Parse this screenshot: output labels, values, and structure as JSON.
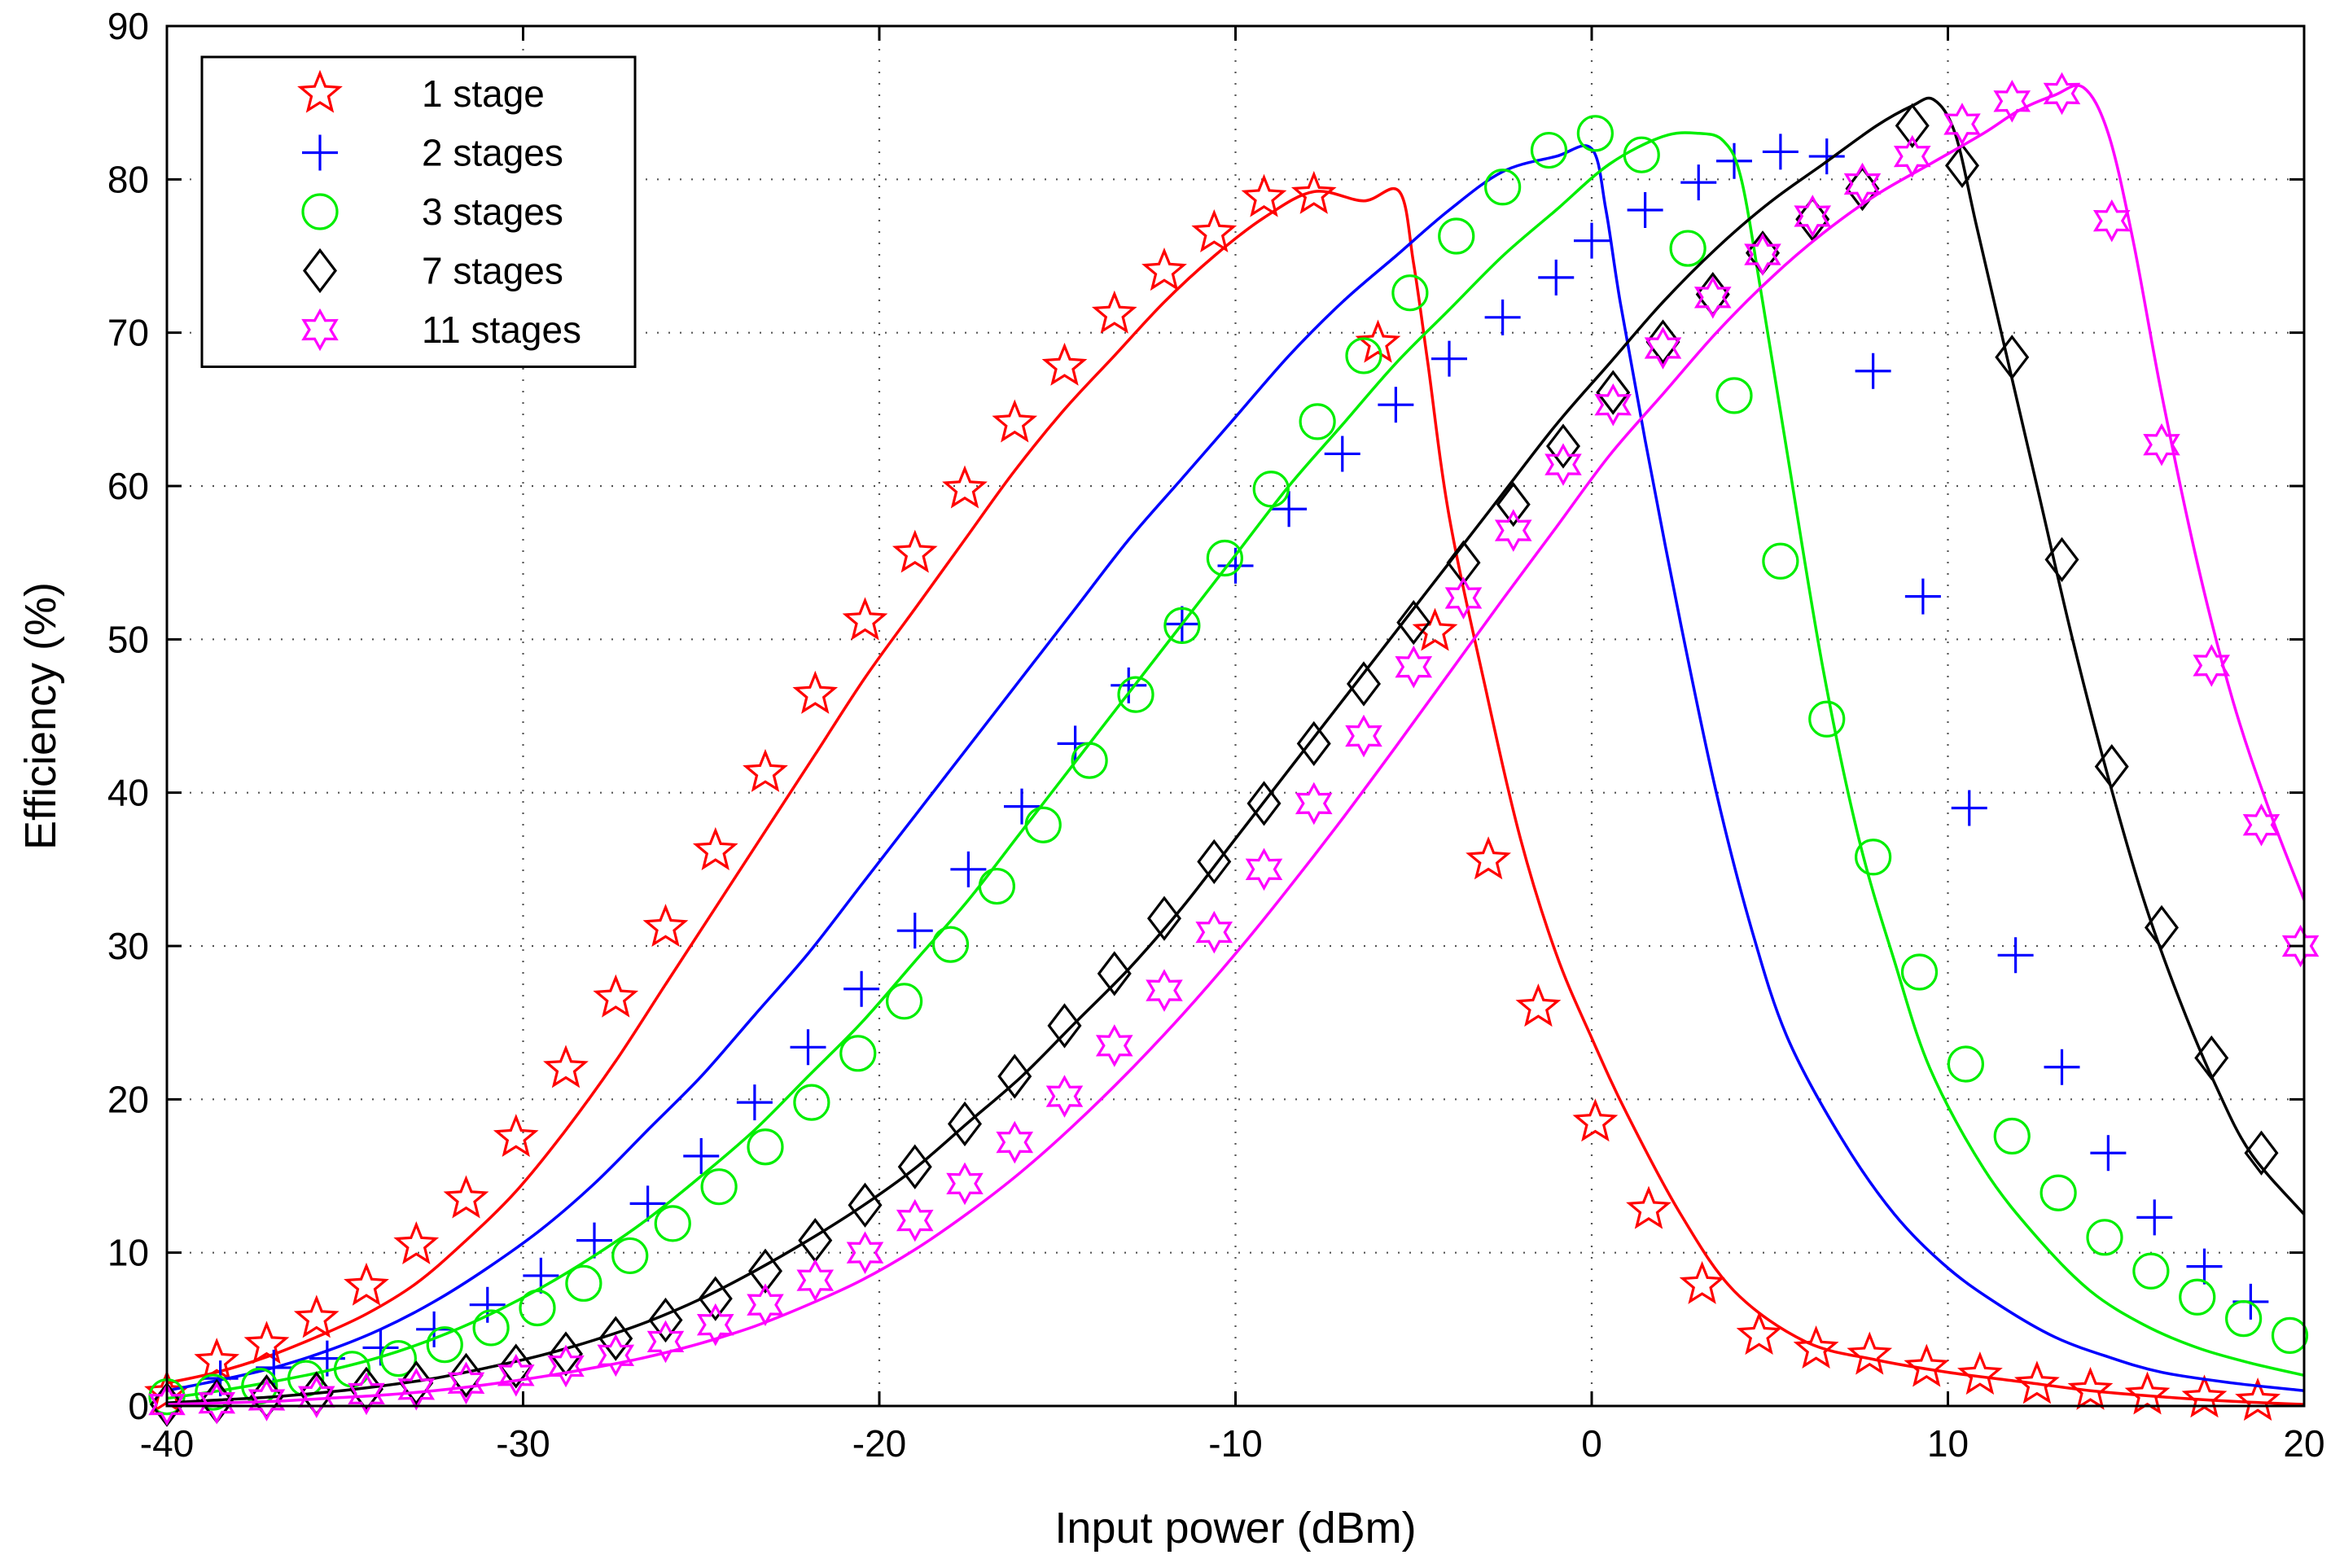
{
  "chart_data": {
    "type": "line",
    "title": "",
    "xlabel": "Input power (dBm)",
    "ylabel": "Efficiency (%)",
    "xlim": [
      -40,
      20
    ],
    "ylim": [
      0,
      90
    ],
    "xticks": [
      "-40",
      "-30",
      "-20",
      "-10",
      "0",
      "10",
      "20"
    ],
    "yticks": [
      "0",
      "10",
      "20",
      "30",
      "40",
      "50",
      "60",
      "70",
      "80",
      "90"
    ],
    "grid": true,
    "legend_position": "top-left",
    "series": [
      {
        "name": "1 stage",
        "color": "#ff0000",
        "marker": "star5",
        "x": [
          -40,
          -38.6,
          -37.2,
          -35.8,
          -34.4,
          -33.0,
          -31.6,
          -30.2,
          -28.8,
          -27.4,
          -26.0,
          -24.6,
          -23.2,
          -21.8,
          -20.4,
          -19.0,
          -17.6,
          -16.2,
          -14.8,
          -13.4,
          -12.0,
          -10.6,
          -9.2,
          -7.8,
          -6.4,
          -5.4,
          -5.0,
          -4.6,
          -4.0,
          -3.0,
          -2.0,
          -1.0,
          0.0,
          1.0,
          2.5,
          4.0,
          6.0,
          8.0,
          10.0,
          12.0,
          14.0,
          16.0,
          18.0,
          20.0
        ],
        "y": [
          1.5,
          2.2,
          3.2,
          4.5,
          6.0,
          8.0,
          10.8,
          14.0,
          18.0,
          22.5,
          27.5,
          32.5,
          37.5,
          42.5,
          47.5,
          52.0,
          56.5,
          61.0,
          65.0,
          68.5,
          72.0,
          75.0,
          77.5,
          79.2,
          78.6,
          79.2,
          74.5,
          68.0,
          58.0,
          47.0,
          37.0,
          29.5,
          24.0,
          19.0,
          12.5,
          7.5,
          4.2,
          3.0,
          2.2,
          1.6,
          1.0,
          0.6,
          0.3,
          0.1
        ],
        "markers_x": [
          -40,
          -38.6,
          -37.2,
          -35.8,
          -34.4,
          -33.0,
          -31.6,
          -30.2,
          -28.8,
          -27.4,
          -26.0,
          -24.6,
          -23.2,
          -21.8,
          -20.4,
          -19.0,
          -17.6,
          -16.2,
          -14.8,
          -13.4,
          -12.0,
          -10.6,
          -9.2,
          -7.8,
          -6.0,
          -4.4,
          -2.9,
          -1.5,
          0.1,
          1.6,
          3.1,
          4.7,
          6.3,
          7.8,
          9.4,
          10.9,
          12.5,
          14.0,
          15.6,
          17.2,
          18.7
        ],
        "markers_y": [
          0.8,
          2.9,
          4.0,
          5.7,
          7.8,
          10.5,
          13.5,
          17.5,
          22.0,
          26.6,
          31.2,
          36.2,
          41.3,
          46.4,
          51.2,
          55.6,
          59.8,
          64.1,
          67.8,
          71.2,
          74.0,
          76.5,
          78.8,
          79.0,
          69.3,
          50.5,
          35.6,
          26.0,
          18.5,
          12.8,
          7.9,
          4.6,
          3.7,
          3.3,
          2.5,
          2.0,
          1.4,
          1.0,
          0.7,
          0.5,
          0.3
        ]
      },
      {
        "name": "2 stages",
        "color": "#0000ff",
        "marker": "plus",
        "x": [
          -40,
          -38.5,
          -37.0,
          -35.5,
          -34.0,
          -32.5,
          -31.0,
          -29.5,
          -28.0,
          -26.5,
          -25.0,
          -23.5,
          -22.0,
          -20.5,
          -19.0,
          -17.5,
          -16.0,
          -14.5,
          -13.0,
          -11.5,
          -10.0,
          -8.5,
          -7.0,
          -5.5,
          -4.0,
          -2.5,
          -1.0,
          0.0,
          0.4,
          0.8,
          1.5,
          2.5,
          3.5,
          4.5,
          5.5,
          7.0,
          8.5,
          10.0,
          11.5,
          13.0,
          14.5,
          16.0,
          18.0,
          20.0
        ],
        "y": [
          1.0,
          1.7,
          2.5,
          3.6,
          5.0,
          6.8,
          9.0,
          11.5,
          14.5,
          18.0,
          21.5,
          25.5,
          29.5,
          34.0,
          38.5,
          43.0,
          47.5,
          52.0,
          56.5,
          60.5,
          64.5,
          68.5,
          72.0,
          75.0,
          78.0,
          80.5,
          81.5,
          82.0,
          78.0,
          72.0,
          63.0,
          51.0,
          40.0,
          31.0,
          24.0,
          17.5,
          12.5,
          9.0,
          6.5,
          4.5,
          3.2,
          2.2,
          1.5,
          1.0
        ],
        "markers_x": [
          -38.5,
          -37.0,
          -35.5,
          -34.0,
          -32.5,
          -31.0,
          -29.5,
          -28.0,
          -26.5,
          -25.0,
          -23.5,
          -22.0,
          -20.5,
          -19.0,
          -17.5,
          -16.0,
          -14.5,
          -13.0,
          -11.5,
          -10.0,
          -8.5,
          -7.0,
          -5.5,
          -4.0,
          -2.5,
          -1.0,
          0.0,
          1.5,
          3.0,
          4.0,
          5.3,
          6.6,
          7.9,
          9.3,
          10.6,
          11.9,
          13.2,
          14.5,
          15.8,
          17.2,
          18.5
        ],
        "markers_y": [
          1.8,
          2.5,
          3.1,
          3.8,
          5.0,
          6.6,
          8.5,
          10.8,
          13.2,
          16.3,
          19.8,
          23.4,
          27.2,
          31.0,
          35.0,
          39.1,
          43.2,
          47.0,
          51.0,
          54.8,
          58.5,
          62.1,
          65.3,
          68.3,
          71.0,
          73.6,
          76.0,
          78.0,
          79.8,
          81.2,
          81.8,
          81.5,
          67.5,
          52.8,
          39.0,
          29.4,
          22.1,
          16.5,
          12.3,
          9.1,
          6.8
        ]
      },
      {
        "name": "3 stages",
        "color": "#00ee00",
        "marker": "circle",
        "x": [
          -40,
          -38.5,
          -37.0,
          -35.5,
          -34.0,
          -32.5,
          -31.0,
          -29.5,
          -28.0,
          -26.5,
          -25.0,
          -23.5,
          -22.0,
          -20.5,
          -19.0,
          -17.5,
          -16.0,
          -14.5,
          -13.0,
          -11.5,
          -10.0,
          -8.5,
          -7.0,
          -5.5,
          -4.0,
          -2.5,
          -1.0,
          0.5,
          2.0,
          3.0,
          3.7,
          4.2,
          4.8,
          5.5,
          6.5,
          7.5,
          8.5,
          9.5,
          11.0,
          12.5,
          14.0,
          15.5,
          17.0,
          18.5,
          20.0
        ],
        "y": [
          0.5,
          1.0,
          1.6,
          2.3,
          3.2,
          4.4,
          5.9,
          7.7,
          9.8,
          12.2,
          15.0,
          18.0,
          21.5,
          25.0,
          29.0,
          33.0,
          37.5,
          42.0,
          46.5,
          51.0,
          55.5,
          60.0,
          64.0,
          68.0,
          71.5,
          75.0,
          78.0,
          81.0,
          82.8,
          83.0,
          82.5,
          80.0,
          72.0,
          62.0,
          48.0,
          37.0,
          29.0,
          22.0,
          15.5,
          11.0,
          7.5,
          5.3,
          3.8,
          2.8,
          2.0
        ],
        "markers_x": [
          -40,
          -38.7,
          -37.4,
          -36.1,
          -34.8,
          -33.5,
          -32.2,
          -30.9,
          -29.6,
          -28.3,
          -27.0,
          -25.8,
          -24.5,
          -23.2,
          -21.9,
          -20.6,
          -19.3,
          -18.0,
          -16.7,
          -15.4,
          -14.1,
          -12.8,
          -11.5,
          -10.3,
          -9.0,
          -7.7,
          -6.4,
          -5.1,
          -3.8,
          -2.5,
          -1.2,
          0.1,
          1.4,
          2.7,
          4.0,
          5.3,
          6.6,
          7.9,
          9.2,
          10.5,
          11.8,
          13.1,
          14.4,
          15.7,
          17.0,
          18.3,
          19.6
        ],
        "markers_y": [
          0.6,
          0.9,
          1.3,
          1.8,
          2.4,
          3.1,
          4.0,
          5.1,
          6.4,
          8.0,
          9.8,
          11.9,
          14.3,
          16.9,
          19.8,
          23.0,
          26.4,
          30.1,
          33.9,
          37.9,
          42.1,
          46.4,
          50.9,
          55.3,
          59.8,
          64.2,
          68.5,
          72.6,
          76.3,
          79.5,
          81.9,
          83.0,
          81.6,
          75.5,
          65.9,
          55.1,
          44.8,
          35.8,
          28.3,
          22.3,
          17.6,
          13.9,
          11.0,
          8.8,
          7.1,
          5.7,
          4.6
        ]
      },
      {
        "name": "7 stages",
        "color": "#000000",
        "marker": "diamond",
        "x": [
          -40,
          -38.5,
          -37.0,
          -35.5,
          -34.0,
          -32.5,
          -31.0,
          -29.5,
          -28.0,
          -26.5,
          -25.0,
          -23.5,
          -22.0,
          -20.5,
          -19.0,
          -17.5,
          -16.0,
          -14.5,
          -13.0,
          -11.5,
          -10.0,
          -8.5,
          -7.0,
          -5.5,
          -4.0,
          -2.5,
          -1.0,
          0.5,
          2.0,
          3.5,
          5.0,
          6.5,
          8.0,
          9.0,
          9.6,
          10.2,
          10.8,
          11.5,
          12.5,
          13.5,
          14.5,
          15.5,
          16.5,
          17.5,
          18.5,
          20.0
        ],
        "y": [
          0.2,
          0.4,
          0.6,
          0.9,
          1.3,
          1.8,
          2.5,
          3.3,
          4.3,
          5.5,
          7.0,
          8.8,
          10.8,
          13.0,
          15.5,
          18.5,
          21.5,
          25.0,
          28.5,
          32.5,
          37.0,
          41.5,
          46.0,
          50.5,
          55.0,
          59.5,
          64.0,
          68.0,
          72.0,
          75.5,
          78.5,
          81.0,
          83.5,
          84.8,
          85.2,
          83.0,
          77.0,
          70.0,
          60.0,
          50.0,
          41.0,
          33.0,
          26.5,
          21.0,
          16.5,
          12.5
        ],
        "markers_x": [
          -40,
          -38.6,
          -37.2,
          -35.8,
          -34.4,
          -33.0,
          -31.6,
          -30.2,
          -28.8,
          -27.4,
          -26.0,
          -24.6,
          -23.2,
          -21.8,
          -20.4,
          -19.0,
          -17.6,
          -16.2,
          -14.8,
          -13.4,
          -12.0,
          -10.6,
          -9.2,
          -7.8,
          -6.4,
          -5.0,
          -3.6,
          -2.2,
          -0.8,
          0.6,
          2.0,
          3.4,
          4.8,
          6.2,
          7.6,
          9.0,
          10.4,
          11.8,
          13.2,
          14.6,
          16.0,
          17.4,
          18.8
        ],
        "markers_y": [
          0.1,
          0.3,
          0.6,
          0.8,
          1.1,
          1.5,
          2.0,
          2.6,
          3.4,
          4.4,
          5.6,
          7.0,
          8.8,
          10.8,
          13.1,
          15.6,
          18.4,
          21.5,
          24.8,
          28.2,
          31.8,
          35.5,
          39.3,
          43.2,
          47.1,
          51.1,
          55.0,
          58.8,
          62.6,
          66.1,
          69.4,
          72.5,
          75.2,
          77.4,
          79.4,
          83.5,
          80.9,
          68.4,
          55.2,
          41.7,
          31.2,
          22.7,
          16.5
        ]
      },
      {
        "name": "11 stages",
        "color": "#ff00ff",
        "marker": "star6",
        "x": [
          -40,
          -38.5,
          -37.0,
          -35.5,
          -34.0,
          -32.5,
          -31.0,
          -29.5,
          -28.0,
          -26.5,
          -25.0,
          -23.5,
          -22.0,
          -20.5,
          -19.0,
          -17.5,
          -16.0,
          -14.5,
          -13.0,
          -11.5,
          -10.0,
          -8.5,
          -7.0,
          -5.5,
          -4.0,
          -2.5,
          -1.0,
          0.5,
          2.0,
          3.5,
          5.0,
          6.5,
          8.0,
          9.5,
          11.0,
          12.0,
          13.0,
          13.8,
          14.5,
          15.2,
          16.0,
          17.0,
          18.0,
          19.0,
          20.0
        ],
        "y": [
          0.1,
          0.2,
          0.3,
          0.5,
          0.7,
          1.0,
          1.4,
          1.9,
          2.5,
          3.2,
          4.1,
          5.2,
          6.6,
          8.2,
          10.2,
          12.6,
          15.3,
          18.4,
          21.8,
          25.5,
          29.5,
          33.8,
          38.3,
          43.0,
          47.8,
          52.6,
          57.3,
          62.0,
          66.0,
          70.0,
          73.5,
          76.5,
          79.0,
          81.0,
          83.0,
          84.5,
          85.5,
          86.0,
          83.0,
          76.0,
          66.0,
          55.0,
          46.0,
          39.0,
          33.0
        ],
        "markers_x": [
          -40,
          -38.6,
          -37.2,
          -35.8,
          -34.4,
          -33.0,
          -31.6,
          -30.2,
          -28.8,
          -27.4,
          -26.0,
          -24.6,
          -23.2,
          -21.8,
          -20.4,
          -19.0,
          -17.6,
          -16.2,
          -14.8,
          -13.4,
          -12.0,
          -10.6,
          -9.2,
          -7.8,
          -6.4,
          -5.0,
          -3.6,
          -2.2,
          -0.8,
          0.6,
          2.0,
          3.4,
          4.8,
          6.2,
          7.6,
          9.0,
          10.4,
          11.8,
          13.2,
          14.6,
          16.0,
          17.4,
          18.8,
          19.9
        ],
        "markers_y": [
          0.1,
          0.2,
          0.4,
          0.6,
          0.8,
          1.1,
          1.5,
          2.0,
          2.6,
          3.3,
          4.2,
          5.3,
          6.6,
          8.2,
          10.0,
          12.1,
          14.5,
          17.2,
          20.2,
          23.5,
          27.1,
          30.9,
          35.0,
          39.3,
          43.7,
          48.2,
          52.7,
          57.1,
          61.4,
          65.3,
          69.0,
          72.3,
          75.1,
          77.6,
          79.7,
          81.5,
          83.6,
          85.1,
          85.6,
          77.3,
          62.7,
          48.3,
          37.9,
          30.0
        ]
      }
    ]
  }
}
